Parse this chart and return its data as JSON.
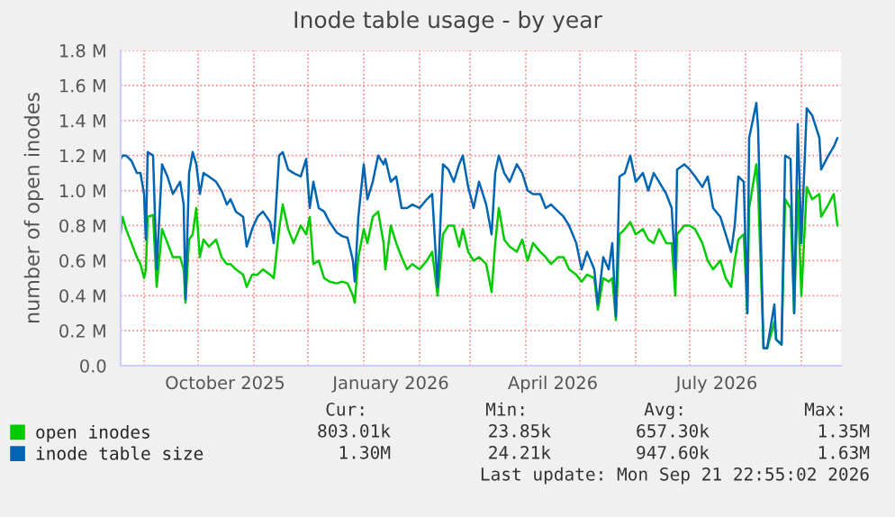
{
  "chart_data": {
    "type": "line",
    "title": "Inode table usage - by year",
    "ylabel": "number of open inodes",
    "x": [
      "2025-08-19",
      "2025-08-20",
      "2025-08-22",
      "2025-08-25",
      "2025-08-28",
      "2025-08-30",
      "2025-09-01",
      "2025-09-02",
      "2025-09-03",
      "2025-09-06",
      "2025-09-08",
      "2025-09-11",
      "2025-09-14",
      "2025-09-17",
      "2025-09-21",
      "2025-09-23",
      "2025-09-24",
      "2025-09-26",
      "2025-09-28",
      "2025-09-30",
      "2025-10-02",
      "2025-10-04",
      "2025-10-07",
      "2025-10-11",
      "2025-10-14",
      "2025-10-17",
      "2025-10-19",
      "2025-10-22",
      "2025-10-26",
      "2025-10-28",
      "2025-10-31",
      "2025-11-03",
      "2025-11-06",
      "2025-11-10",
      "2025-11-12",
      "2025-11-15",
      "2025-11-17",
      "2025-11-20",
      "2025-11-23",
      "2025-11-27",
      "2025-11-30",
      "2025-12-02",
      "2025-12-04",
      "2025-12-07",
      "2025-12-10",
      "2025-12-13",
      "2025-12-17",
      "2025-12-20",
      "2025-12-23",
      "2025-12-26",
      "2025-12-27",
      "2025-12-29",
      "2026-01-01",
      "2026-01-03",
      "2026-01-06",
      "2026-01-09",
      "2026-01-12",
      "2026-01-13",
      "2026-01-16",
      "2026-01-19",
      "2026-01-22",
      "2026-01-25",
      "2026-01-28",
      "2026-02-01",
      "2026-02-05",
      "2026-02-08",
      "2026-02-11",
      "2026-02-14",
      "2026-02-17",
      "2026-02-20",
      "2026-02-23",
      "2026-02-25",
      "2026-02-28",
      "2026-03-03",
      "2026-03-06",
      "2026-03-10",
      "2026-03-13",
      "2026-03-15",
      "2026-03-17",
      "2026-03-20",
      "2026-03-23",
      "2026-03-27",
      "2026-03-30",
      "2026-04-02",
      "2026-04-05",
      "2026-04-09",
      "2026-04-12",
      "2026-04-15",
      "2026-04-19",
      "2026-04-22",
      "2026-04-25",
      "2026-04-29",
      "2026-05-02",
      "2026-05-05",
      "2026-05-09",
      "2026-05-11",
      "2026-05-14",
      "2026-05-17",
      "2026-05-19",
      "2026-05-21",
      "2026-05-23",
      "2026-05-26",
      "2026-05-29",
      "2026-06-01",
      "2026-06-05",
      "2026-06-08",
      "2026-06-11",
      "2026-06-14",
      "2026-06-18",
      "2026-06-21",
      "2026-06-23",
      "2026-06-24",
      "2026-06-28",
      "2026-07-01",
      "2026-07-04",
      "2026-07-08",
      "2026-07-11",
      "2026-07-14",
      "2026-07-18",
      "2026-07-21",
      "2026-07-24",
      "2026-07-26",
      "2026-07-28",
      "2026-07-31",
      "2026-08-02",
      "2026-08-03",
      "2026-08-07",
      "2026-08-08",
      "2026-08-11",
      "2026-08-13",
      "2026-08-17",
      "2026-08-18",
      "2026-08-21",
      "2026-08-23",
      "2026-08-26",
      "2026-08-28",
      "2026-08-30",
      "2026-09-01",
      "2026-09-04",
      "2026-09-07",
      "2026-09-11",
      "2026-09-12",
      "2026-09-16",
      "2026-09-19",
      "2026-09-21"
    ],
    "series": [
      {
        "name": "open inodes",
        "color": "#00cc00",
        "values": [
          0.75,
          0.85,
          0.78,
          0.7,
          0.62,
          0.58,
          0.5,
          0.55,
          0.85,
          0.86,
          0.45,
          0.78,
          0.7,
          0.62,
          0.62,
          0.55,
          0.36,
          0.72,
          0.75,
          0.9,
          0.62,
          0.72,
          0.68,
          0.72,
          0.62,
          0.58,
          0.58,
          0.55,
          0.52,
          0.45,
          0.52,
          0.52,
          0.55,
          0.52,
          0.5,
          0.78,
          0.92,
          0.78,
          0.7,
          0.8,
          0.75,
          0.85,
          0.58,
          0.6,
          0.5,
          0.48,
          0.47,
          0.48,
          0.47,
          0.4,
          0.36,
          0.62,
          0.78,
          0.7,
          0.85,
          0.88,
          0.7,
          0.55,
          0.8,
          0.7,
          0.62,
          0.55,
          0.58,
          0.55,
          0.6,
          0.65,
          0.4,
          0.75,
          0.8,
          0.8,
          0.68,
          0.78,
          0.65,
          0.6,
          0.62,
          0.58,
          0.42,
          0.7,
          0.9,
          0.72,
          0.68,
          0.65,
          0.72,
          0.6,
          0.7,
          0.65,
          0.62,
          0.58,
          0.62,
          0.62,
          0.55,
          0.52,
          0.48,
          0.52,
          0.5,
          0.32,
          0.5,
          0.48,
          0.5,
          0.26,
          0.75,
          0.78,
          0.82,
          0.75,
          0.78,
          0.72,
          0.7,
          0.78,
          0.7,
          0.7,
          0.4,
          0.75,
          0.8,
          0.8,
          0.78,
          0.7,
          0.6,
          0.55,
          0.6,
          0.5,
          0.45,
          0.6,
          0.72,
          0.75,
          0.3,
          0.9,
          1.15,
          1.0,
          0.1,
          0.1,
          0.25,
          0.15,
          0.12,
          0.95,
          0.9,
          0.3,
          1.0,
          0.4,
          1.02,
          0.95,
          0.98,
          0.85,
          0.92,
          0.98,
          0.8
        ]
      },
      {
        "name": "inode table size",
        "color": "#0066b3",
        "values": [
          1.18,
          1.2,
          1.2,
          1.17,
          1.1,
          1.1,
          0.98,
          0.72,
          1.22,
          1.2,
          0.55,
          1.15,
          1.08,
          0.98,
          1.05,
          0.92,
          0.38,
          1.1,
          1.22,
          1.15,
          0.98,
          1.1,
          1.08,
          1.05,
          1.0,
          0.92,
          0.95,
          0.88,
          0.85,
          0.68,
          0.78,
          0.85,
          0.88,
          0.82,
          0.7,
          1.2,
          1.22,
          1.12,
          1.1,
          1.08,
          1.18,
          0.9,
          1.05,
          0.9,
          0.88,
          0.82,
          0.76,
          0.74,
          0.73,
          0.6,
          0.48,
          0.85,
          1.15,
          0.95,
          1.05,
          1.2,
          1.15,
          1.18,
          1.05,
          1.08,
          0.9,
          0.9,
          0.92,
          0.9,
          0.95,
          0.98,
          0.45,
          1.15,
          1.12,
          1.05,
          1.15,
          1.2,
          1.02,
          0.9,
          1.05,
          0.92,
          0.75,
          1.1,
          1.2,
          1.1,
          1.05,
          1.15,
          1.1,
          1.0,
          0.98,
          0.98,
          0.9,
          0.92,
          0.88,
          0.85,
          0.8,
          0.7,
          0.55,
          0.65,
          0.55,
          0.35,
          0.62,
          0.55,
          0.7,
          0.28,
          1.08,
          1.1,
          1.2,
          1.05,
          1.1,
          1.0,
          1.1,
          1.05,
          0.98,
          0.9,
          0.55,
          1.12,
          1.15,
          1.12,
          1.08,
          1.02,
          1.08,
          0.9,
          0.85,
          0.75,
          0.65,
          0.8,
          1.08,
          1.05,
          0.3,
          1.3,
          1.5,
          1.35,
          0.1,
          0.1,
          0.35,
          0.15,
          0.12,
          1.2,
          1.18,
          0.3,
          1.38,
          0.7,
          1.47,
          1.43,
          1.3,
          1.12,
          1.2,
          1.25,
          1.3
        ]
      }
    ],
    "xlim": [
      "2025-08-19",
      "2026-09-23"
    ],
    "xticks": [
      {
        "value": "2025-09-01",
        "label": null
      },
      {
        "value": "2025-10-01",
        "label": null
      },
      {
        "value": "2025-10-16",
        "label": "October 2025"
      },
      {
        "value": "2025-11-01",
        "label": null
      },
      {
        "value": "2025-12-01",
        "label": null
      },
      {
        "value": "2026-01-01",
        "label": null
      },
      {
        "value": "2026-01-16",
        "label": "January 2026"
      },
      {
        "value": "2026-02-01",
        "label": null
      },
      {
        "value": "2026-03-01",
        "label": null
      },
      {
        "value": "2026-04-01",
        "label": null
      },
      {
        "value": "2026-04-16",
        "label": "April 2026"
      },
      {
        "value": "2026-05-01",
        "label": null
      },
      {
        "value": "2026-06-01",
        "label": null
      },
      {
        "value": "2026-07-01",
        "label": null
      },
      {
        "value": "2026-07-16",
        "label": "July 2026"
      },
      {
        "value": "2026-08-01",
        "label": null
      },
      {
        "value": "2026-09-01",
        "label": null
      }
    ],
    "ylim": [
      0,
      1.8
    ],
    "yticks": [
      {
        "value": 0,
        "label": "0.0"
      },
      {
        "value": 0.2,
        "label": "0.2 M"
      },
      {
        "value": 0.4,
        "label": "0.4 M"
      },
      {
        "value": 0.6,
        "label": "0.6 M"
      },
      {
        "value": 0.8,
        "label": "0.8 M"
      },
      {
        "value": 1.0,
        "label": "1.0 M"
      },
      {
        "value": 1.2,
        "label": "1.2 M"
      },
      {
        "value": 1.4,
        "label": "1.4 M"
      },
      {
        "value": 1.6,
        "label": "1.6 M"
      },
      {
        "value": 1.8,
        "label": "1.8 M"
      }
    ],
    "grid": true,
    "legend": "bottom",
    "annotations": [
      "Cur:",
      "Min:",
      "Avg:",
      "Max:",
      "803.01k",
      "23.85k",
      "657.30k",
      "1.35M",
      "1.30M",
      "24.21k",
      "947.60k",
      "1.63M",
      "Last update: Mon Sep 21 22:55:02 2026"
    ]
  }
}
